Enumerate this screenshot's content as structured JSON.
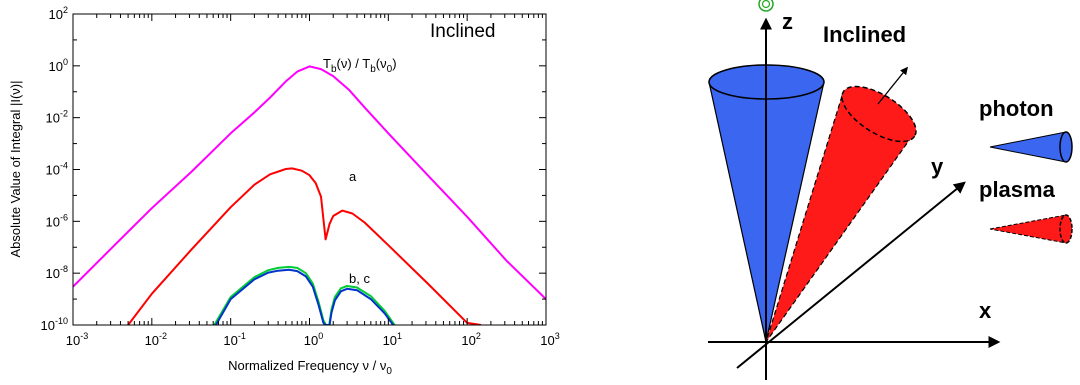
{
  "chart_data": {
    "type": "line",
    "title": "Inclined",
    "xlabel_main": "Normalized Frequency ν / ν",
    "xlabel_sub": "0",
    "ylabel": "Absolute Value of Integral |I(ν)|",
    "x_scale": "log",
    "y_scale": "log",
    "xlim": [
      0.001,
      1000
    ],
    "ylim": [
      1e-10,
      100
    ],
    "grid": false,
    "x_ticks": [
      {
        "value": 0.001,
        "base": "10",
        "exp": "-3"
      },
      {
        "value": 0.01,
        "base": "10",
        "exp": "-2"
      },
      {
        "value": 0.1,
        "base": "10",
        "exp": "-1"
      },
      {
        "value": 1,
        "base": "10",
        "exp": "0"
      },
      {
        "value": 10,
        "base": "10",
        "exp": "1"
      },
      {
        "value": 100,
        "base": "10",
        "exp": "2"
      },
      {
        "value": 1000,
        "base": "10",
        "exp": "3"
      }
    ],
    "y_ticks": [
      {
        "value": 1e-10,
        "base": "10",
        "exp": "-10"
      },
      {
        "value": 1e-08,
        "base": "10",
        "exp": "-8"
      },
      {
        "value": 1e-06,
        "base": "10",
        "exp": "-6"
      },
      {
        "value": 0.0001,
        "base": "10",
        "exp": "-4"
      },
      {
        "value": 0.01,
        "base": "10",
        "exp": "-2"
      },
      {
        "value": 1,
        "base": "10",
        "exp": "0"
      },
      {
        "value": 100,
        "base": "10",
        "exp": "2"
      }
    ],
    "series": [
      {
        "color": "#ff00ff",
        "points": [
          [
            0.001,
            3e-09
          ],
          [
            0.00316,
            1e-07
          ],
          [
            0.01,
            3.2e-06
          ],
          [
            0.0316,
            8e-05
          ],
          [
            0.1,
            0.0025
          ],
          [
            0.2,
            0.016
          ],
          [
            0.316,
            0.06
          ],
          [
            0.5,
            0.25
          ],
          [
            0.7,
            0.6
          ],
          [
            1.0,
            0.95
          ],
          [
            1.4,
            0.75
          ],
          [
            2.0,
            0.4
          ],
          [
            3.16,
            0.12
          ],
          [
            5.0,
            0.025
          ],
          [
            10,
            0.0025
          ],
          [
            31.6,
            6e-05
          ],
          [
            100,
            1.5e-06
          ],
          [
            316,
            3e-08
          ],
          [
            1000,
            1e-09
          ]
        ]
      },
      {
        "color": "#ff0000",
        "points": [
          [
            0.005,
            1e-10
          ],
          [
            0.01,
            1.6e-09
          ],
          [
            0.0316,
            8e-08
          ],
          [
            0.1,
            3.5e-06
          ],
          [
            0.2,
            2.6e-05
          ],
          [
            0.316,
            6.5e-05
          ],
          [
            0.5,
            0.000105
          ],
          [
            0.6,
            0.00011
          ],
          [
            0.8,
            9e-05
          ],
          [
            1.0,
            6e-05
          ],
          [
            1.2,
            3e-05
          ],
          [
            1.4,
            9e-06
          ],
          [
            1.6,
            2e-07
          ],
          [
            1.8,
            8e-07
          ],
          [
            2.0,
            1.6e-06
          ],
          [
            2.6,
            2.6e-06
          ],
          [
            3.5,
            2e-06
          ],
          [
            5.0,
            9e-07
          ],
          [
            10,
            1.2e-07
          ],
          [
            31.6,
            4e-09
          ],
          [
            100,
            1.2e-10
          ],
          [
            150,
            1e-10
          ]
        ]
      },
      {
        "color": "#00cc33",
        "points": [
          [
            0.062,
            1e-10
          ],
          [
            0.1,
            1.2e-09
          ],
          [
            0.2,
            7e-09
          ],
          [
            0.3,
            1.3e-08
          ],
          [
            0.4,
            1.6e-08
          ],
          [
            0.55,
            1.75e-08
          ],
          [
            0.7,
            1.6e-08
          ],
          [
            0.9,
            1e-08
          ],
          [
            1.1,
            4e-09
          ],
          [
            1.3,
            8e-10
          ],
          [
            1.5,
            1.5e-10
          ],
          [
            1.62,
            1e-10
          ],
          [
            1.78,
            1e-10
          ],
          [
            1.9,
            4e-10
          ],
          [
            2.1,
            1.2e-09
          ],
          [
            2.5,
            2.6e-09
          ],
          [
            3.0,
            3.2e-09
          ],
          [
            4.0,
            2.8e-09
          ],
          [
            6.0,
            1.3e-09
          ],
          [
            9.0,
            3.5e-10
          ],
          [
            12.0,
            1e-10
          ]
        ]
      },
      {
        "color": "#0033cc",
        "points": [
          [
            0.065,
            1e-10
          ],
          [
            0.1,
            1e-09
          ],
          [
            0.2,
            5.8e-09
          ],
          [
            0.3,
            1.05e-08
          ],
          [
            0.4,
            1.25e-08
          ],
          [
            0.55,
            1.35e-08
          ],
          [
            0.7,
            1.2e-08
          ],
          [
            0.9,
            7.5e-09
          ],
          [
            1.1,
            3e-09
          ],
          [
            1.3,
            6e-10
          ],
          [
            1.5,
            1.2e-10
          ],
          [
            1.6,
            1e-10
          ],
          [
            1.8,
            1e-10
          ],
          [
            1.9,
            3e-10
          ],
          [
            2.1,
            9e-10
          ],
          [
            2.5,
            2e-09
          ],
          [
            3.0,
            2.5e-09
          ],
          [
            4.0,
            2.2e-09
          ],
          [
            6.0,
            1e-09
          ],
          [
            9.0,
            2.8e-10
          ],
          [
            11.5,
            1e-10
          ]
        ]
      }
    ],
    "annotations": {
      "magenta_label_parts": [
        "T",
        "b",
        "(ν) / T",
        "b",
        "(ν",
        "0",
        ")"
      ],
      "red_label": "a",
      "green_blue_label": "b, c"
    }
  },
  "diagram": {
    "title": "Inclined",
    "axis_z": "z",
    "axis_y": "y",
    "axis_x": "x",
    "legend_photon": "photon",
    "legend_plasma": "plasma",
    "photon_color": "#3a66f0",
    "plasma_color": "#ff1a1a",
    "observer_color": "#22aa22"
  }
}
